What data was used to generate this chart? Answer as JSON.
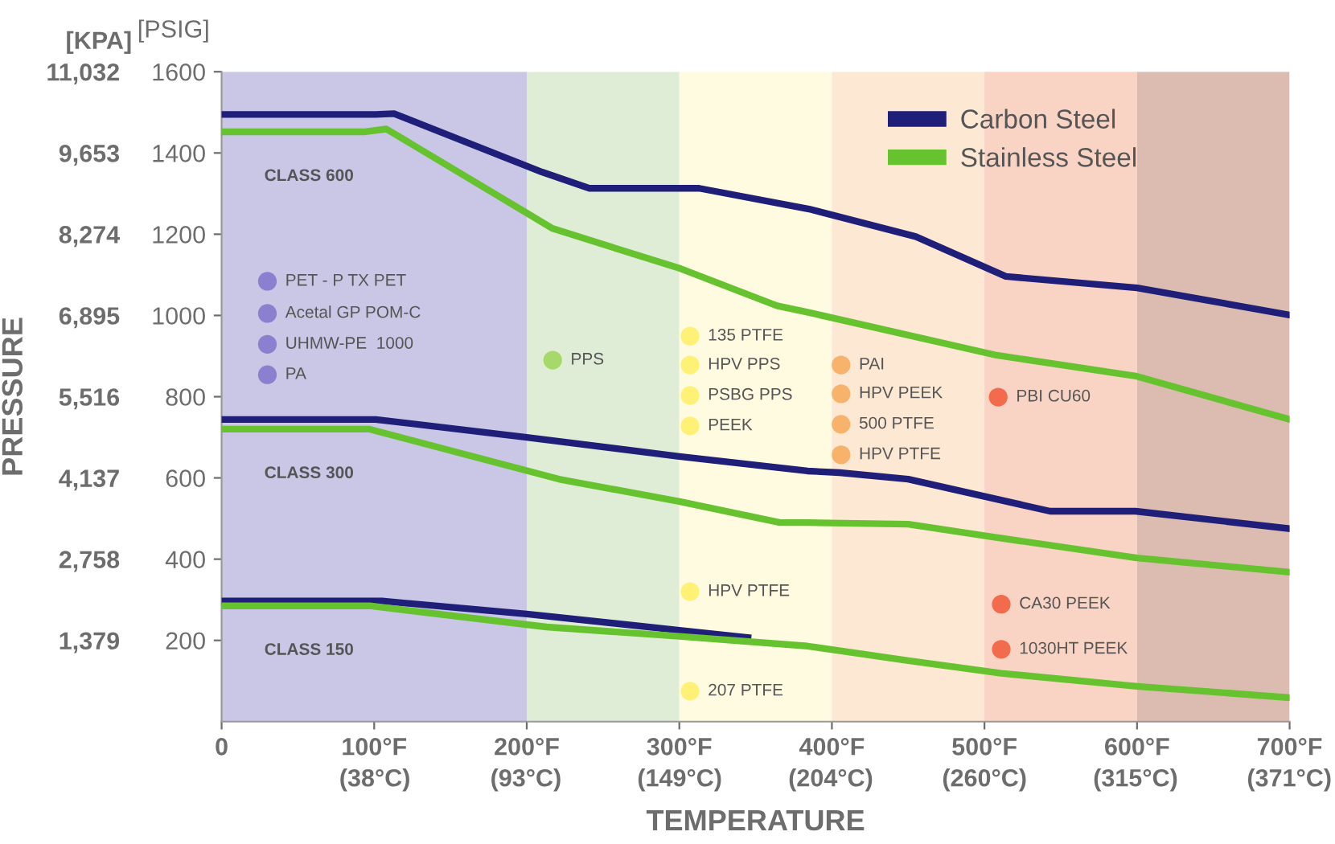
{
  "chart_data": {
    "type": "line",
    "xlabel": "TEMPERATURE",
    "ylabel": "[PSIG]",
    "y2label": "PRESSURE",
    "xlim": [
      0,
      700
    ],
    "ylim": [
      0,
      1600
    ],
    "y2lim": [
      0,
      11032
    ],
    "xticks": [
      0,
      {
        "value": 100,
        "label": "100°F"
      },
      {
        "value": 200,
        "label": "200°F"
      },
      {
        "value": 300,
        "label": "300°F"
      },
      {
        "value": 400,
        "label": "400°F"
      },
      {
        "value": 500,
        "label": "500°F"
      },
      {
        "value": 600,
        "label": "600°F"
      },
      {
        "value": 700,
        "label": "700°F"
      }
    ],
    "x2lim": [
      -17.8,
      371.1
    ],
    "x2ticks": [
      {
        "value": 38,
        "label": "(38°C)"
      },
      {
        "value": 93,
        "label": "(93°C)"
      },
      {
        "value": 149,
        "label": "(149°C)"
      },
      {
        "value": 204,
        "label": "(204°C)"
      },
      {
        "value": 260,
        "label": "(260°C)"
      },
      {
        "value": 315,
        "label": "(315°C)"
      },
      {
        "value": 371,
        "label": "(371°C)"
      }
    ],
    "yticks": [
      200,
      400,
      600,
      800,
      1000,
      1200,
      1400,
      1600
    ],
    "y2ticks": [
      {
        "value": 1379,
        "label": "1,379"
      },
      {
        "value": 2758,
        "label": "2,758"
      },
      {
        "value": 4137,
        "label": "4,137"
      },
      {
        "value": 5516,
        "label": "5,516"
      },
      {
        "value": 6895,
        "label": "6,895"
      },
      {
        "value": 8274,
        "label": "8,274"
      },
      {
        "value": 9653,
        "label": "9,653"
      },
      {
        "value": 11032,
        "label": "11,032"
      }
    ],
    "legend": "top right",
    "grid": false,
    "bands": [
      {
        "axis": "x",
        "from": 0,
        "to": 200,
        "color": "#c9c6e6"
      },
      {
        "axis": "x",
        "from": 200,
        "to": 300,
        "color": "#e0edd6"
      },
      {
        "axis": "x",
        "from": 300,
        "to": 400,
        "color": "#fffbe0"
      },
      {
        "axis": "x",
        "from": 400,
        "to": 500,
        "color": "#fde8d3"
      },
      {
        "axis": "x",
        "from": 500,
        "to": 600,
        "color": "#f9d4c4"
      },
      {
        "axis": "x",
        "from": 600,
        "to": 700,
        "color": "#dcbcb0"
      }
    ],
    "series": [
      {
        "name": "Carbon Steel",
        "color": "#1f1f7a",
        "x": [
          0,
          101,
          113,
          210,
          241,
          313,
          385,
          455,
          514,
          600,
          700
        ],
        "values": [
          1495,
          1495,
          1497,
          1353,
          1313,
          1313,
          1262,
          1194,
          1096,
          1068,
          1001
        ]
      },
      {
        "name": "Stainless Steel",
        "color": "#66c22e",
        "x": [
          0,
          93,
          108,
          217,
          301,
          364,
          384,
          508,
          600,
          700
        ],
        "values": [
          1452,
          1452,
          1459,
          1214,
          1115,
          1024,
          1008,
          902,
          850,
          744
        ]
      },
      {
        "color": "#1f1f7a",
        "x": [
          0,
          101,
          200,
          300,
          384,
          405,
          450,
          543,
          599,
          700
        ],
        "values": [
          744,
          744,
          700,
          653,
          617,
          613,
          597,
          518,
          518,
          475
        ]
      },
      {
        "color": "#66c22e",
        "x": [
          0,
          97,
          221,
          300,
          366,
          384,
          450,
          505,
          600,
          700
        ],
        "values": [
          720,
          720,
          597,
          542,
          490,
          490,
          486,
          455,
          403,
          368
        ]
      },
      {
        "color": "#1f1f7a",
        "x": [
          0,
          105,
          200,
          300,
          345
        ],
        "values": [
          297,
          297,
          265,
          225,
          207
        ]
      },
      {
        "color": "#66c22e",
        "x": [
          0,
          97,
          213,
          300,
          384,
          450,
          511,
          600,
          700
        ],
        "values": [
          285,
          285,
          233,
          210,
          186,
          150,
          119,
          87,
          59
        ]
      },
      {
        "type": "scatter",
        "color": "#8b7fd0",
        "x": [
          30,
          30,
          30,
          30
        ],
        "values": [
          1084,
          1005,
          929,
          854
        ]
      },
      {
        "type": "scatter",
        "color": "#a6d96a",
        "x": [
          217
        ],
        "values": [
          890
        ]
      },
      {
        "type": "scatter",
        "color": "#fff176",
        "x": [
          307,
          307,
          307,
          307,
          307,
          307
        ],
        "values": [
          949,
          878,
          803,
          728,
          320,
          75
        ]
      },
      {
        "type": "scatter",
        "color": "#f7b26b",
        "x": [
          406,
          406,
          406,
          406
        ],
        "values": [
          878,
          807,
          732,
          657
        ]
      },
      {
        "type": "scatter",
        "color": "#f26b4c",
        "x": [
          509,
          511,
          511
        ],
        "values": [
          799,
          289,
          178
        ]
      }
    ],
    "annotations": [
      "[KPA]",
      "CLASS 600",
      "CLASS 300",
      "CLASS 150",
      {
        "text": "PET - P TX PET",
        "x": 30,
        "y": 1084
      },
      {
        "text": "Acetal GP POM-C",
        "x": 30,
        "y": 1005
      },
      {
        "text": "UHMW-PE  1000",
        "x": 30,
        "y": 929
      },
      {
        "text": "PA",
        "x": 30,
        "y": 854
      },
      {
        "text": "PPS",
        "x": 217,
        "y": 890
      },
      {
        "text": "135 PTFE",
        "x": 307,
        "y": 949
      },
      {
        "text": "HPV PPS",
        "x": 307,
        "y": 878
      },
      {
        "text": "PSBG PPS",
        "x": 307,
        "y": 803
      },
      {
        "text": "PEEK",
        "x": 307,
        "y": 728
      },
      {
        "text": "HPV PTFE",
        "x": 307,
        "y": 320
      },
      {
        "text": "207 PTFE",
        "x": 307,
        "y": 75
      },
      {
        "text": "PAI",
        "x": 406,
        "y": 878
      },
      {
        "text": "HPV PEEK",
        "x": 406,
        "y": 807
      },
      {
        "text": "500 PTFE",
        "x": 406,
        "y": 732
      },
      {
        "text": "HPV PTFE",
        "x": 406,
        "y": 657
      },
      {
        "text": "PBI CU60",
        "x": 509,
        "y": 799
      },
      {
        "text": "CA30 PEEK",
        "x": 511,
        "y": 289
      },
      {
        "text": "1030HT PEEK",
        "x": 511,
        "y": 178
      }
    ]
  }
}
